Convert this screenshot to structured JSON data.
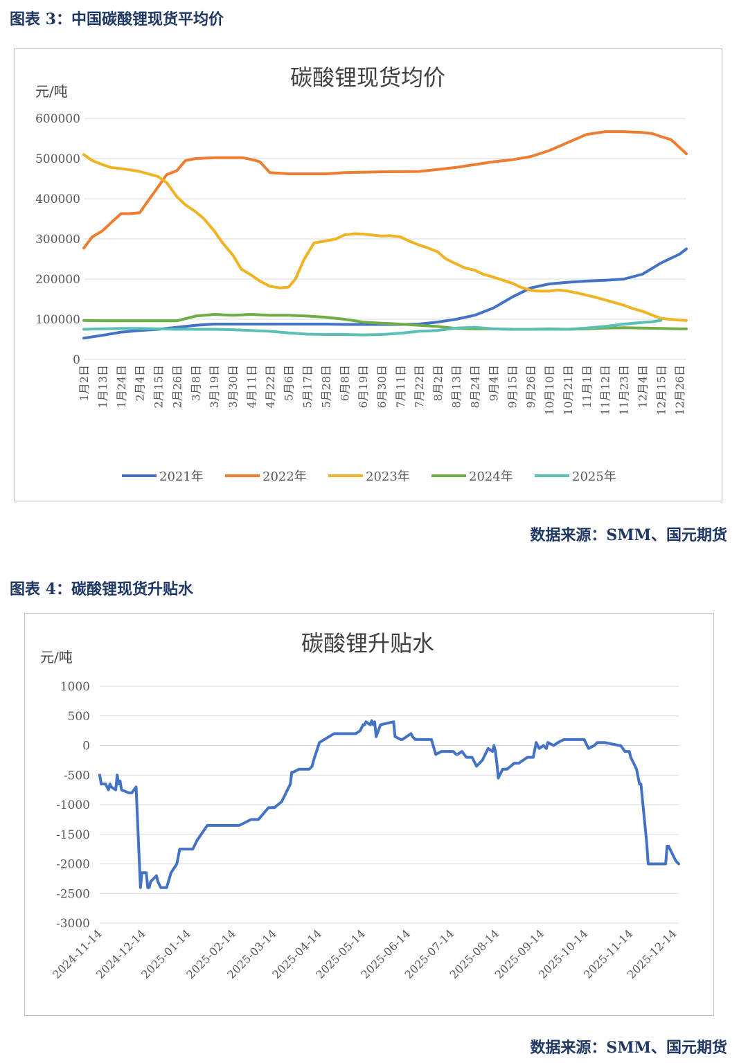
{
  "figures": [
    {
      "caption": "图表 3：中国碳酸锂现货平均价",
      "source": "数据来源：SMM、国元期货"
    },
    {
      "caption": "图表 4：碳酸锂现货升贴水",
      "source": "数据来源：SMM、国元期货"
    }
  ],
  "chart_data": [
    {
      "type": "line",
      "title": "碳酸锂现货均价",
      "ylabel": "元/吨",
      "xlabel": "",
      "ylim": [
        0,
        600000
      ],
      "yticks": [
        0,
        100000,
        200000,
        300000,
        400000,
        500000,
        600000
      ],
      "ytick_labels": [
        "0",
        "100000",
        "200000",
        "300000",
        "400000",
        "500000",
        "600000"
      ],
      "categories": [
        "1月2日",
        "1月13日",
        "1月24日",
        "2月4日",
        "2月15日",
        "2月26日",
        "3月8日",
        "3月19日",
        "3月30日",
        "4月11日",
        "4月22日",
        "5月6日",
        "5月17日",
        "5月28日",
        "6月8日",
        "6月19日",
        "6月30日",
        "7月11日",
        "7月22日",
        "8月2日",
        "8月13日",
        "8月24日",
        "9月4日",
        "9月15日",
        "9月26日",
        "10月10日",
        "10月21日",
        "11月1日",
        "11月12日",
        "11月23日",
        "12月4日",
        "12月15日",
        "12月26日"
      ],
      "x": [
        0,
        11,
        22,
        33,
        44,
        55,
        66,
        77,
        88,
        99,
        110,
        121,
        132,
        143,
        154,
        165,
        176,
        187,
        198,
        209,
        220,
        231,
        242,
        253,
        264,
        275,
        286,
        297,
        308,
        319,
        330,
        341,
        352,
        356
      ],
      "legend_position": "bottom",
      "grid": true,
      "series": [
        {
          "name": "2021年",
          "color": "#4472c4",
          "x": [
            0,
            11,
            22,
            33,
            44,
            55,
            66,
            77,
            88,
            99,
            110,
            121,
            132,
            143,
            154,
            165,
            176,
            187,
            198,
            209,
            220,
            231,
            242,
            253,
            264,
            275,
            286,
            297,
            308,
            319,
            330,
            341,
            352,
            356
          ],
          "values": [
            53000,
            60000,
            68000,
            72000,
            75000,
            80000,
            85000,
            88000,
            88000,
            88000,
            88000,
            88000,
            88000,
            88000,
            87000,
            87000,
            87000,
            87000,
            88000,
            93000,
            100000,
            110000,
            128000,
            155000,
            178000,
            188000,
            192000,
            195000,
            197000,
            200000,
            212000,
            240000,
            262000,
            275000
          ]
        },
        {
          "name": "2022年",
          "color": "#ed7d31",
          "x": [
            0,
            5,
            11,
            16,
            22,
            27,
            33,
            38,
            44,
            49,
            55,
            60,
            66,
            77,
            88,
            94,
            99,
            104,
            110,
            121,
            143,
            154,
            176,
            198,
            209,
            220,
            231,
            242,
            253,
            264,
            275,
            286,
            297,
            308,
            319,
            330,
            336,
            341,
            347,
            356
          ],
          "values": [
            277000,
            305000,
            320000,
            340000,
            363000,
            363000,
            365000,
            395000,
            430000,
            460000,
            470000,
            495000,
            500000,
            502000,
            502000,
            502000,
            498000,
            492000,
            465000,
            462000,
            462000,
            465000,
            467000,
            468000,
            473000,
            478000,
            485000,
            492000,
            497000,
            505000,
            520000,
            540000,
            560000,
            567000,
            567000,
            565000,
            562000,
            555000,
            547000,
            512000
          ]
        },
        {
          "name": "2023年",
          "color": "#f0b323",
          "x": [
            0,
            5,
            11,
            16,
            22,
            27,
            33,
            38,
            44,
            49,
            55,
            60,
            66,
            71,
            77,
            82,
            88,
            93,
            99,
            104,
            110,
            116,
            121,
            125,
            130,
            136,
            143,
            149,
            154,
            160,
            165,
            170,
            176,
            181,
            187,
            192,
            198,
            203,
            209,
            214,
            220,
            225,
            231,
            236,
            242,
            247,
            253,
            258,
            264,
            269,
            275,
            280,
            286,
            292,
            297,
            302,
            308,
            313,
            319,
            324,
            330,
            336,
            341,
            346,
            352,
            356
          ],
          "values": [
            510000,
            495000,
            485000,
            478000,
            475000,
            472000,
            468000,
            462000,
            455000,
            440000,
            405000,
            385000,
            368000,
            350000,
            320000,
            290000,
            260000,
            225000,
            210000,
            195000,
            182000,
            178000,
            180000,
            200000,
            248000,
            290000,
            295000,
            300000,
            310000,
            313000,
            312000,
            310000,
            307000,
            308000,
            305000,
            295000,
            285000,
            278000,
            268000,
            250000,
            238000,
            228000,
            222000,
            212000,
            205000,
            198000,
            190000,
            180000,
            172000,
            170000,
            170000,
            173000,
            170000,
            165000,
            160000,
            155000,
            148000,
            142000,
            135000,
            127000,
            120000,
            110000,
            102000,
            100000,
            98000,
            97000
          ]
        },
        {
          "name": "2024年",
          "color": "#70ad47",
          "x": [
            0,
            11,
            22,
            33,
            44,
            55,
            66,
            77,
            88,
            99,
            110,
            121,
            132,
            143,
            154,
            165,
            176,
            187,
            198,
            209,
            220,
            231,
            242,
            253,
            264,
            275,
            286,
            297,
            308,
            319,
            330,
            341,
            352,
            356
          ],
          "values": [
            97000,
            96000,
            96000,
            96000,
            96000,
            96000,
            108000,
            112000,
            110000,
            112000,
            110000,
            110000,
            108000,
            105000,
            100000,
            93000,
            90000,
            88000,
            85000,
            82000,
            77000,
            76000,
            76000,
            75000,
            75000,
            76000,
            75000,
            76000,
            78000,
            79000,
            78000,
            77000,
            76000,
            76000
          ]
        },
        {
          "name": "2025年",
          "color": "#5bbfb5",
          "x": [
            0,
            11,
            22,
            33,
            44,
            55,
            66,
            77,
            88,
            99,
            110,
            121,
            132,
            143,
            154,
            165,
            176,
            187,
            198,
            209,
            220,
            231,
            242,
            253,
            264,
            275,
            286,
            297,
            308,
            319,
            330,
            336,
            341
          ],
          "values": [
            75000,
            76000,
            77000,
            77000,
            76000,
            75000,
            75000,
            75000,
            74000,
            72000,
            70000,
            66000,
            63000,
            62000,
            62000,
            61000,
            62000,
            65000,
            70000,
            72000,
            78000,
            80000,
            76000,
            75000,
            75000,
            75000,
            75000,
            78000,
            82000,
            88000,
            92000,
            94000,
            97000
          ]
        }
      ]
    },
    {
      "type": "line",
      "title": "碳酸锂升贴水",
      "ylabel": "元/吨",
      "xlabel": "",
      "ylim": [
        -3000,
        1000
      ],
      "yticks": [
        -3000,
        -2500,
        -2000,
        -1500,
        -1000,
        -500,
        0,
        500,
        1000
      ],
      "ytick_labels": [
        "-3000",
        "-2500",
        "-2000",
        "-1500",
        "-1000",
        "-500",
        "0",
        "500",
        "1000"
      ],
      "categories": [
        "2024-11-14",
        "2024-12-14",
        "2025-01-14",
        "2025-02-14",
        "2025-03-14",
        "2025-04-14",
        "2025-05-14",
        "2025-06-14",
        "2025-07-14",
        "2025-08-14",
        "2025-09-14",
        "2025-10-14",
        "2025-11-14",
        "2025-12-14"
      ],
      "legend_position": "none",
      "grid": true,
      "series": [
        {
          "name": "",
          "color": "#4472c4",
          "x": [
            "2024-11-14",
            "2024-11-15",
            "2024-11-18",
            "2024-11-20",
            "2024-11-21",
            "2024-11-22",
            "2024-11-25",
            "2024-11-26",
            "2024-11-27",
            "2024-11-28",
            "2024-11-29",
            "2024-12-02",
            "2024-12-04",
            "2024-12-06",
            "2024-12-09",
            "2024-12-12",
            "2024-12-13",
            "2024-12-16",
            "2024-12-17",
            "2024-12-18",
            "2024-12-19",
            "2024-12-23",
            "2024-12-24",
            "2024-12-26",
            "2024-12-30",
            "2025-01-02",
            "2025-01-06",
            "2025-01-08",
            "2025-01-13",
            "2025-01-15",
            "2025-01-17",
            "2025-01-20",
            "2025-01-27",
            "2025-02-05",
            "2025-02-12",
            "2025-02-18",
            "2025-02-26",
            "2025-03-03",
            "2025-03-10",
            "2025-03-13",
            "2025-03-14",
            "2025-03-19",
            "2025-03-21",
            "2025-03-25",
            "2025-03-26",
            "2025-03-27",
            "2025-03-31",
            "2025-04-01",
            "2025-04-07",
            "2025-04-09",
            "2025-04-10",
            "2025-04-14",
            "2025-04-24",
            "2025-04-28",
            "2025-05-06",
            "2025-05-09",
            "2025-05-12",
            "2025-05-13",
            "2025-05-14",
            "2025-05-15",
            "2025-05-16",
            "2025-05-19",
            "2025-05-20",
            "2025-05-21",
            "2025-05-22",
            "2025-05-23",
            "2025-05-26",
            "2025-06-04",
            "2025-06-05",
            "2025-06-09",
            "2025-06-10",
            "2025-06-16",
            "2025-06-17",
            "2025-06-19",
            "2025-06-25",
            "2025-06-30",
            "2025-07-03",
            "2025-07-07",
            "2025-07-14",
            "2025-07-15",
            "2025-07-17",
            "2025-07-18",
            "2025-07-21",
            "2025-07-24",
            "2025-07-28",
            "2025-07-31",
            "2025-08-04",
            "2025-08-07",
            "2025-08-08",
            "2025-08-11",
            "2025-08-12",
            "2025-08-13",
            "2025-08-14",
            "2025-08-15",
            "2025-08-18",
            "2025-08-21",
            "2025-08-26",
            "2025-08-29",
            "2025-09-04",
            "2025-09-05",
            "2025-09-08",
            "2025-09-10",
            "2025-09-12",
            "2025-09-15",
            "2025-09-17",
            "2025-09-18",
            "2025-09-22",
            "2025-09-25",
            "2025-09-29",
            "2025-10-13",
            "2025-10-14",
            "2025-10-16",
            "2025-10-20",
            "2025-10-22",
            "2025-10-27",
            "2025-11-06",
            "2025-11-07",
            "2025-11-10",
            "2025-11-12",
            "2025-11-13",
            "2025-11-14",
            "2025-11-18",
            "2025-11-20",
            "2025-11-21",
            "2025-11-25",
            "2025-11-26",
            "2025-12-03",
            "2025-12-08",
            "2025-12-09",
            "2025-12-10",
            "2025-12-15",
            "2025-12-17"
          ],
          "values": [
            -500,
            -650,
            -650,
            -750,
            -650,
            -700,
            -750,
            -500,
            -650,
            -600,
            -750,
            -780,
            -800,
            -800,
            -700,
            -2400,
            -2150,
            -2150,
            -2400,
            -2400,
            -2300,
            -2200,
            -2300,
            -2400,
            -2400,
            -2150,
            -2000,
            -1750,
            -1750,
            -1750,
            -1750,
            -1600,
            -1350,
            -1350,
            -1350,
            -1350,
            -1250,
            -1250,
            -1050,
            -1050,
            -1050,
            -950,
            -850,
            -650,
            -450,
            -450,
            -400,
            -400,
            -400,
            -350,
            -250,
            50,
            200,
            200,
            200,
            200,
            250,
            300,
            350,
            350,
            400,
            350,
            420,
            350,
            400,
            150,
            350,
            400,
            150,
            100,
            100,
            200,
            150,
            100,
            100,
            100,
            -150,
            -100,
            -100,
            -100,
            -150,
            -150,
            -100,
            -200,
            -200,
            -350,
            -250,
            -100,
            -50,
            -100,
            0,
            -100,
            -300,
            -550,
            -400,
            -400,
            -300,
            -300,
            -200,
            -200,
            -200,
            50,
            -50,
            0,
            -50,
            50,
            0,
            50,
            100,
            100,
            50,
            -50,
            0,
            50,
            50,
            0,
            0,
            -100,
            -100,
            -100,
            -200,
            -400,
            -650,
            -650,
            -1650,
            -2000,
            -2000,
            -2000,
            -1700,
            -1700,
            -1950,
            -2000
          ]
        }
      ]
    }
  ]
}
